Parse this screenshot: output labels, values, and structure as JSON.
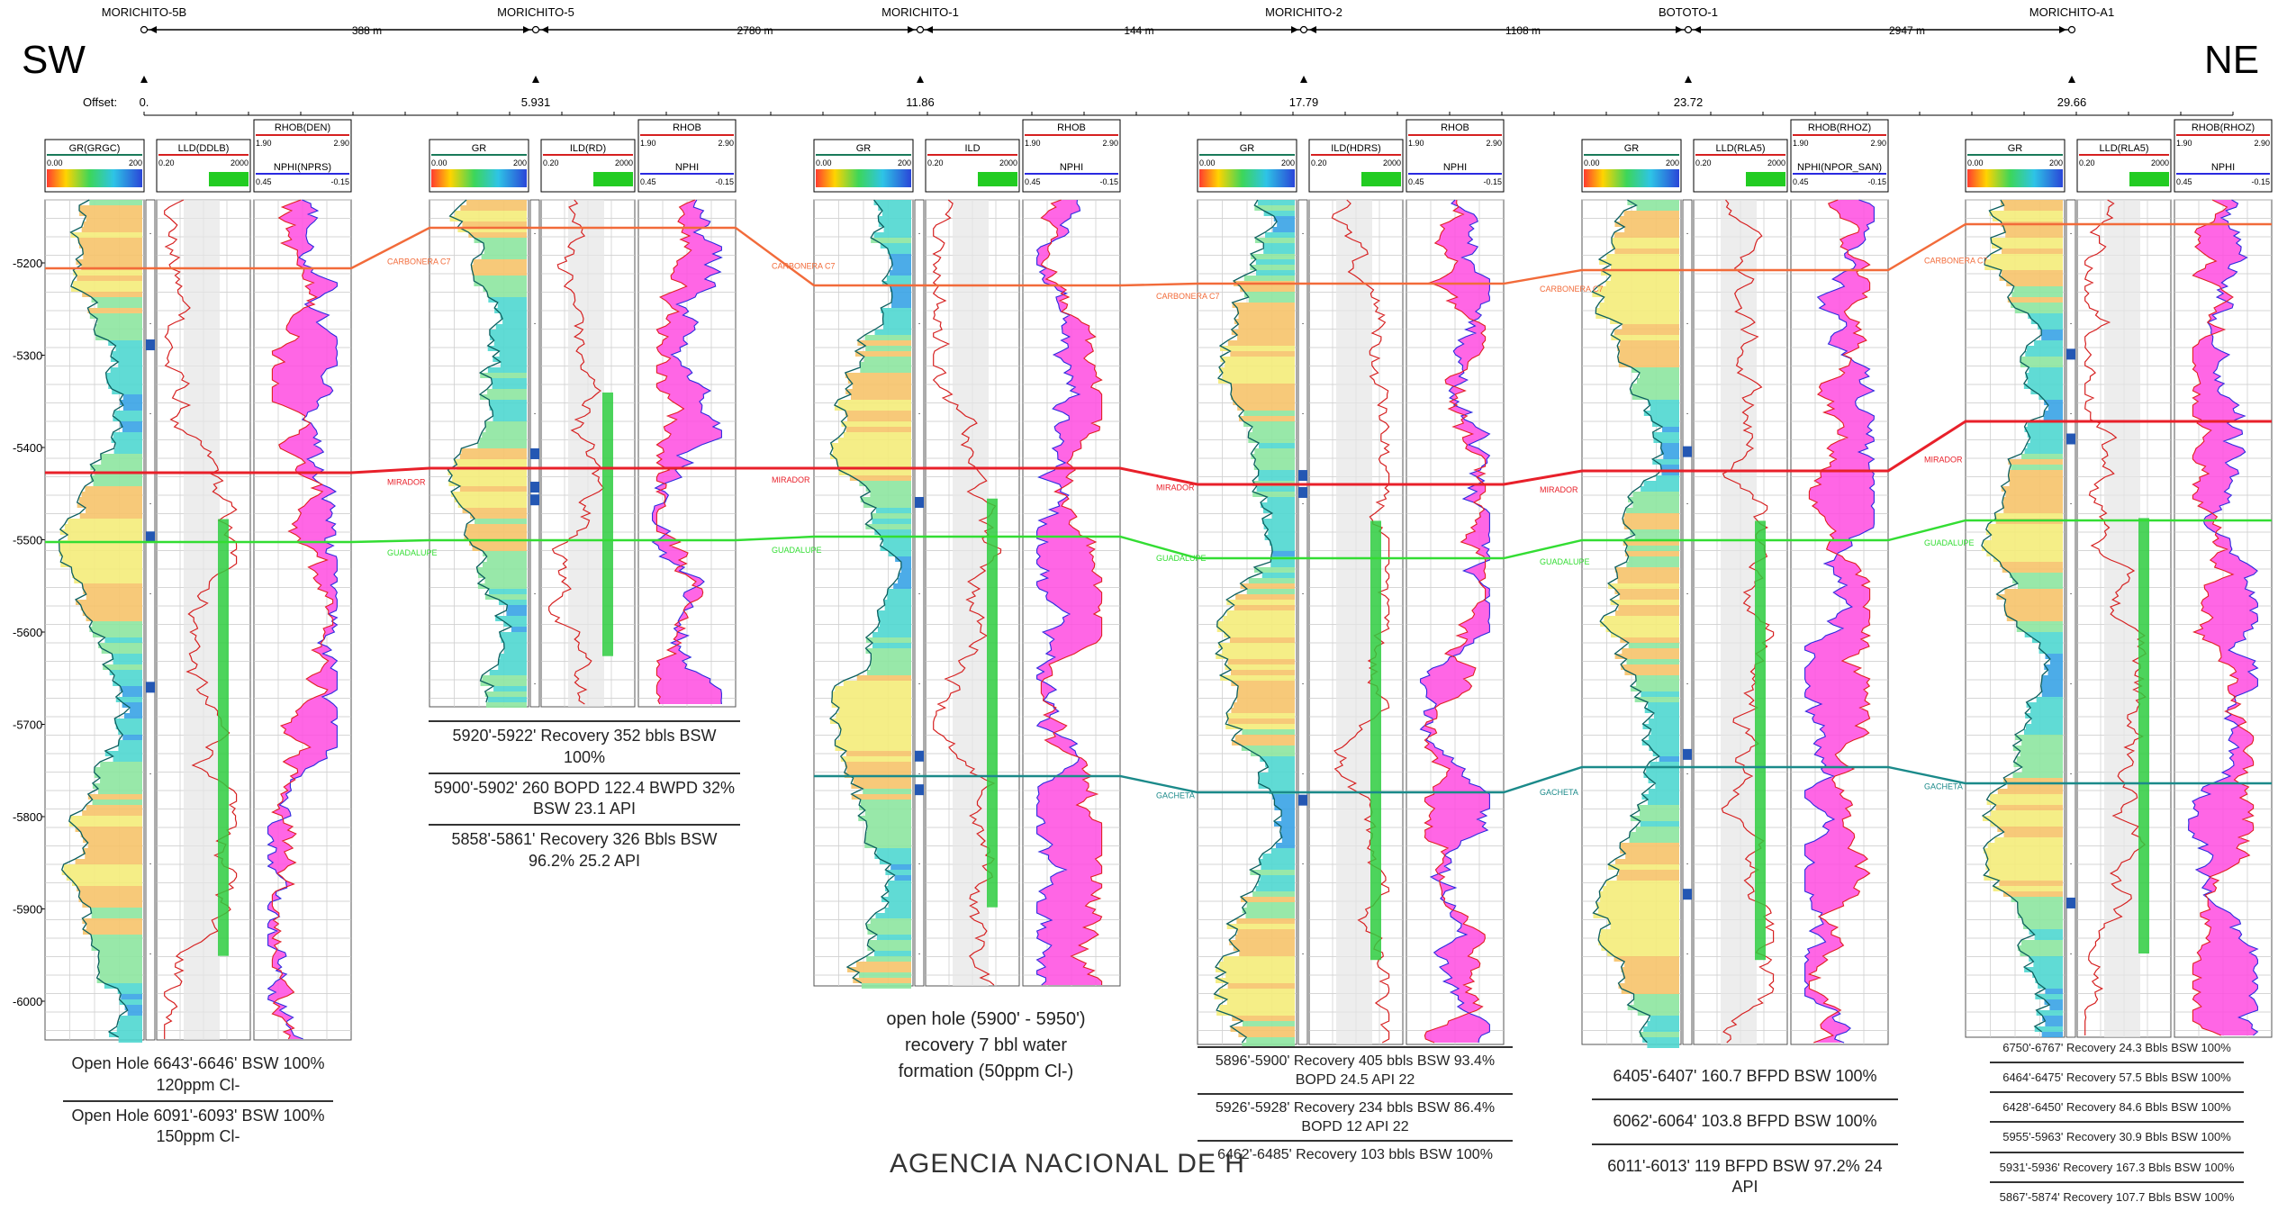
{
  "directions": {
    "left": "SW",
    "right": "NE"
  },
  "offset_label": "Offset:",
  "wells": [
    {
      "name": "MORICHITO-5B",
      "offset": "0.",
      "tracks": {
        "gr": "GR(GRGC)",
        "res": "LLD(DDLB)",
        "dens": "RHOB(DEN)",
        "neu": "NPHI(NPRS)"
      }
    },
    {
      "name": "MORICHITO-5",
      "offset": "5.931",
      "tracks": {
        "gr": "GR",
        "res": "ILD(RD)",
        "dens": "RHOB",
        "neu": "NPHI"
      }
    },
    {
      "name": "MORICHITO-1",
      "offset": "11.86",
      "tracks": {
        "gr": "GR",
        "res": "ILD",
        "dens": "RHOB",
        "neu": "NPHI"
      }
    },
    {
      "name": "MORICHITO-2",
      "offset": "17.79",
      "tracks": {
        "gr": "GR",
        "res": "ILD(HDRS)",
        "dens": "RHOB",
        "neu": "NPHI"
      }
    },
    {
      "name": "BOTOTO-1",
      "offset": "23.72",
      "tracks": {
        "gr": "GR",
        "res": "LLD(RLA5)",
        "dens": "RHOB(RHOZ)",
        "neu": "NPHI(NPOR_SAN)"
      }
    },
    {
      "name": "MORICHITO-A1",
      "offset": "29.66",
      "tracks": {
        "gr": "GR",
        "res": "LLD(RLA5)",
        "dens": "RHOB(RHOZ)",
        "neu": "NPHI"
      }
    }
  ],
  "distances": [
    "388 m",
    "2780 m",
    "144 m",
    "1108 m",
    "2947 m"
  ],
  "scales": {
    "gr_min": "0.00",
    "gr_max": "200",
    "res_min": "0.20",
    "res_max": "2000",
    "rhob_min": "1.90",
    "rhob_max": "2.90",
    "nphi_min": "0.45",
    "nphi_max": "-0.15"
  },
  "depth_ticks": [
    "-5200",
    "-5300",
    "-5400",
    "-5500",
    "-5600",
    "-5700",
    "-5800",
    "-5900",
    "-6000"
  ],
  "horizons": [
    {
      "name": "CARBONERA C7",
      "color": "#f26b3a"
    },
    {
      "name": "MIRADOR",
      "color": "#e8202a"
    },
    {
      "name": "GUADALUPE",
      "color": "#33dd33"
    },
    {
      "name": "GACHETA",
      "color": "#1b8a8a"
    }
  ],
  "results": {
    "w0": [
      "Open Hole 6643'-6646' BSW 100% 120ppm Cl-",
      "Open Hole 6091'-6093' BSW 100% 150ppm Cl-"
    ],
    "w1": [
      "5920'-5922' Recovery 352 bbls BSW 100%",
      "5900'-5902' 260 BOPD 122.4 BWPD 32% BSW 23.1 API",
      "5858'-5861' Recovery 326 Bbls BSW 96.2% 25.2 API"
    ],
    "w2": "open hole (5900' - 5950') recovery 7 bbl water formation (50ppm Cl-)",
    "w3": [
      "5896'-5900' Recovery 405 bbls BSW 93.4% BOPD 24.5 API 22",
      "5926'-5928' Recovery 234 bbls BSW 86.4% BOPD 12 API 22",
      "6462'-6485' Recovery 103 bbls BSW 100%"
    ],
    "w4": [
      "6405'-6407' 160.7 BFPD BSW 100%",
      "6062'-6064' 103.8 BFPD BSW 100%",
      "6011'-6013' 119 BFPD BSW 97.2% 24 API"
    ],
    "w5": [
      "6750'-6767' Recovery 24.3 Bbls BSW 100%",
      "6464'-6475' Recovery 57.5 Bbls BSW 100%",
      "6428'-6450' Recovery 84.6 Bbls BSW 100%",
      "5955'-5963' Recovery 30.9 Bbls BSW 100%",
      "5931'-5936' Recovery 167.3 Bbls BSW 100%",
      "5867'-5874' Recovery 107.7 Bbls BSW 100%"
    ]
  },
  "watermark": "AGENCIA NACIONAL DE H"
}
